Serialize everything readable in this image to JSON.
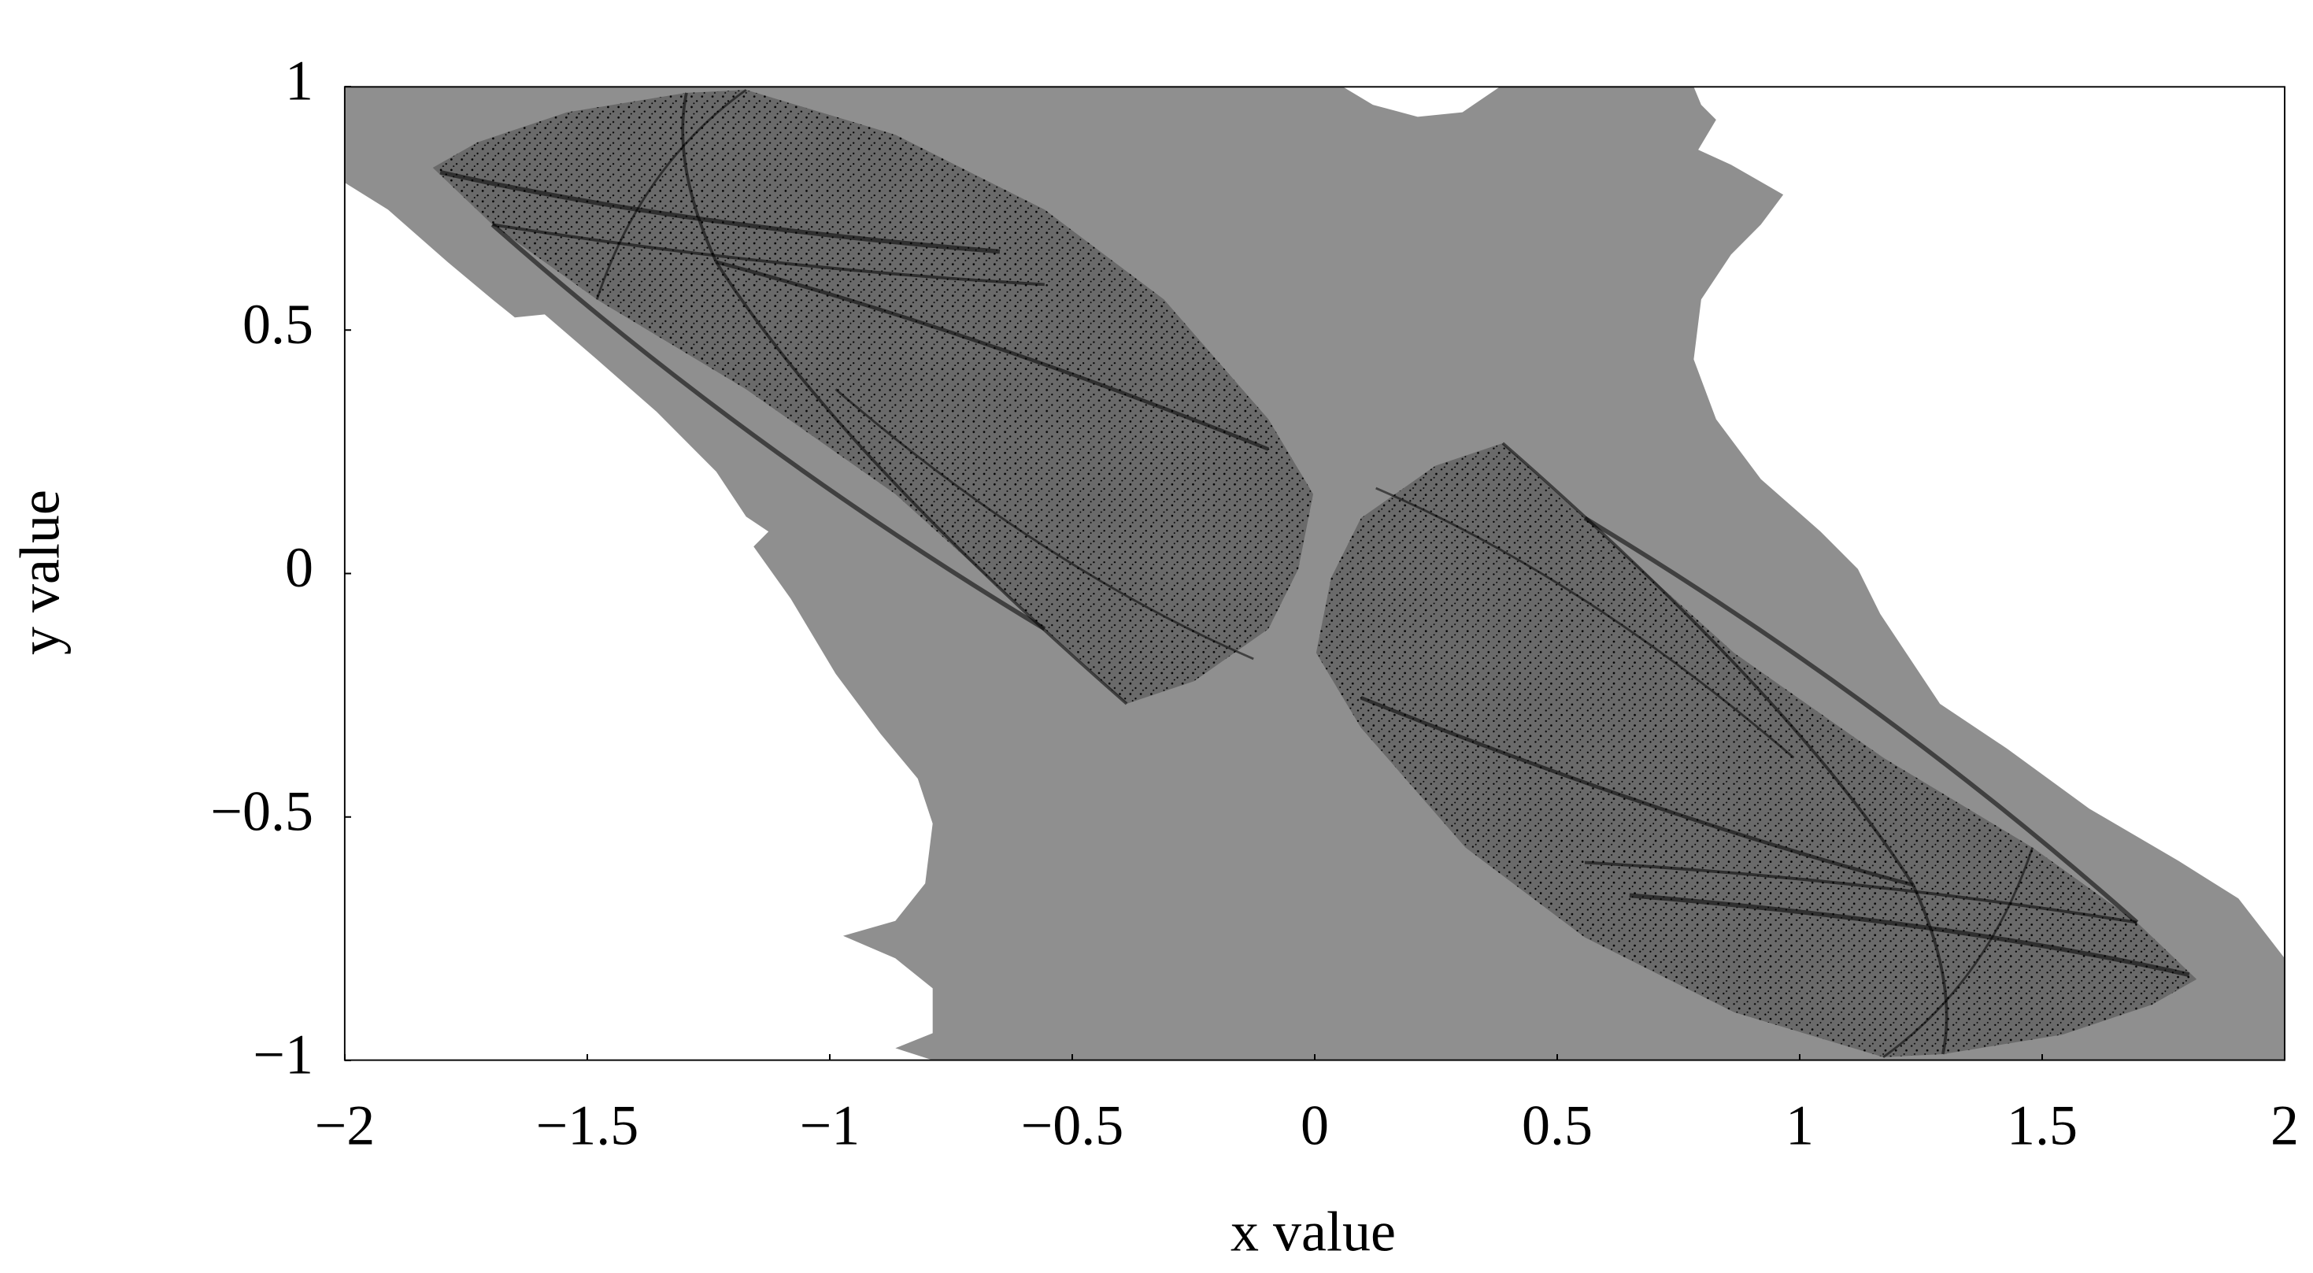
{
  "chart_data": {
    "type": "scatter",
    "xlabel": "x value",
    "ylabel": "y value",
    "xlim": [
      -2,
      2
    ],
    "ylim": [
      -1,
      1
    ],
    "xticks": [
      {
        "value": -2,
        "label": "−2"
      },
      {
        "value": -1.5,
        "label": "−1.5"
      },
      {
        "value": -1,
        "label": "−1"
      },
      {
        "value": -0.5,
        "label": "−0.5"
      },
      0,
      0.5,
      1,
      1.5,
      2
    ],
    "yticks": [
      {
        "value": -1,
        "label": "−1"
      },
      {
        "value": -0.5,
        "label": "−0.5"
      },
      0,
      0.5,
      1
    ]
  }
}
